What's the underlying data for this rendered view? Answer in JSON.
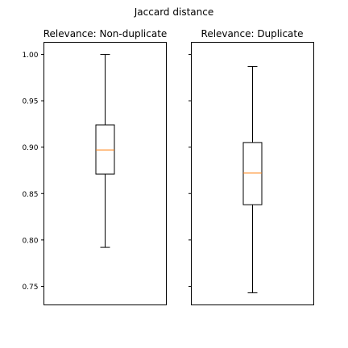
{
  "figure": {
    "title": "Jaccard distance"
  },
  "chart_data": {
    "type": "box",
    "title": "Jaccard distance",
    "shared_y": true,
    "ylim": [
      0.73,
      1.013
    ],
    "yticks": [
      0.75,
      0.8,
      0.85,
      0.9,
      0.95,
      1.0
    ],
    "ytick_labels": [
      "0.75",
      "0.80",
      "0.85",
      "0.90",
      "0.95",
      "1.00"
    ],
    "colors": {
      "box": "#000000",
      "median": "#ff7f0e"
    },
    "panels": [
      {
        "title": "Relevance: Non-duplicate",
        "whisker_low": 0.792,
        "q1": 0.871,
        "median": 0.897,
        "q3": 0.924,
        "whisker_high": 1.0
      },
      {
        "title": "Relevance: Duplicate",
        "whisker_low": 0.743,
        "q1": 0.838,
        "median": 0.872,
        "q3": 0.905,
        "whisker_high": 0.987
      }
    ]
  }
}
